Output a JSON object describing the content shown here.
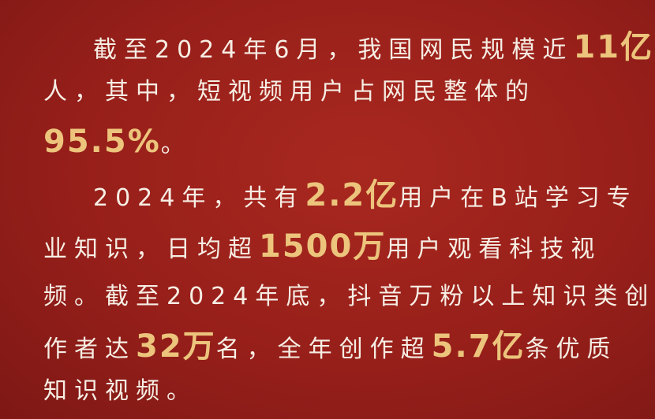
{
  "colors": {
    "background": "#971f1a",
    "text": "#f6eee4",
    "highlight": "#ecc47c"
  },
  "lines": [
    {
      "indent": true,
      "segments": [
        {
          "text": "截至2024年6月，我国网民规模近"
        },
        {
          "text": "11亿",
          "highlight": true
        }
      ]
    },
    {
      "indent": false,
      "segments": [
        {
          "text": "人，其中，短视频用户占网民整体的"
        }
      ]
    },
    {
      "indent": false,
      "segments": [
        {
          "text": "95.5%",
          "highlight": true
        },
        {
          "text": "。"
        }
      ]
    },
    {
      "indent": true,
      "segments": [
        {
          "text": "2024年，共有"
        },
        {
          "text": "2.2亿",
          "highlight": true
        },
        {
          "text": "用户在B站学习专"
        }
      ]
    },
    {
      "indent": false,
      "segments": [
        {
          "text": "业知识，日均超"
        },
        {
          "text": "1500万",
          "highlight": true
        },
        {
          "text": "用户观看科技视"
        }
      ]
    },
    {
      "indent": false,
      "segments": [
        {
          "text": "频。截至2024年底，抖音万粉以上知识类创"
        }
      ]
    },
    {
      "indent": false,
      "segments": [
        {
          "text": "作者达"
        },
        {
          "text": "32万",
          "highlight": true
        },
        {
          "text": "名，全年创作超"
        },
        {
          "text": "5.7亿",
          "highlight": true
        },
        {
          "text": "条优质"
        }
      ]
    },
    {
      "indent": false,
      "segments": [
        {
          "text": "知识视频。"
        }
      ]
    }
  ]
}
